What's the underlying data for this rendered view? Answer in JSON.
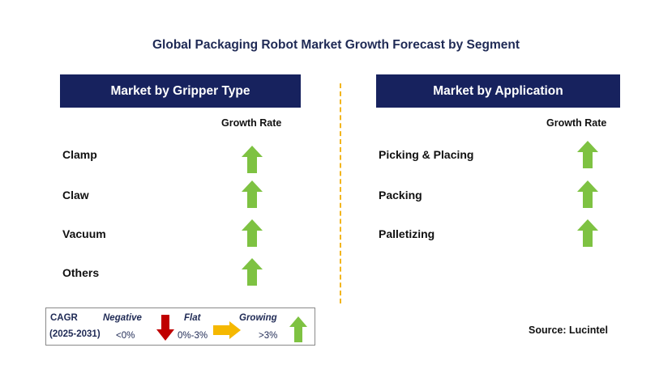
{
  "title": "Global Packaging Robot Market Growth Forecast by Segment",
  "left_panel": {
    "header": "Market by Gripper Type",
    "growth_label": "Growth Rate",
    "rows": [
      {
        "label": "Clamp",
        "trend": "growing"
      },
      {
        "label": "Claw",
        "trend": "growing"
      },
      {
        "label": "Vacuum",
        "trend": "growing"
      },
      {
        "label": "Others",
        "trend": "growing"
      }
    ]
  },
  "right_panel": {
    "header": "Market by Application",
    "growth_label": "Growth Rate",
    "rows": [
      {
        "label": "Picking & Placing",
        "trend": "growing"
      },
      {
        "label": "Packing",
        "trend": "growing"
      },
      {
        "label": "Palletizing",
        "trend": "growing"
      }
    ]
  },
  "legend": {
    "cagr_label": "CAGR",
    "period": "(2025-2031)",
    "negative": {
      "label": "Negative",
      "range": "<0%",
      "icon": "down-arrow-icon",
      "color": "#c00000"
    },
    "flat": {
      "label": "Flat",
      "range": "0%-3%",
      "icon": "right-arrow-icon",
      "color": "#f5b800"
    },
    "growing": {
      "label": "Growing",
      "range": ">3%",
      "icon": "up-arrow-icon",
      "color": "#7ec242"
    }
  },
  "source": "Source: Lucintel",
  "colors": {
    "header_bg": "#17225e",
    "divider": "#f2b51c",
    "growth_arrow": "#7ec242"
  }
}
